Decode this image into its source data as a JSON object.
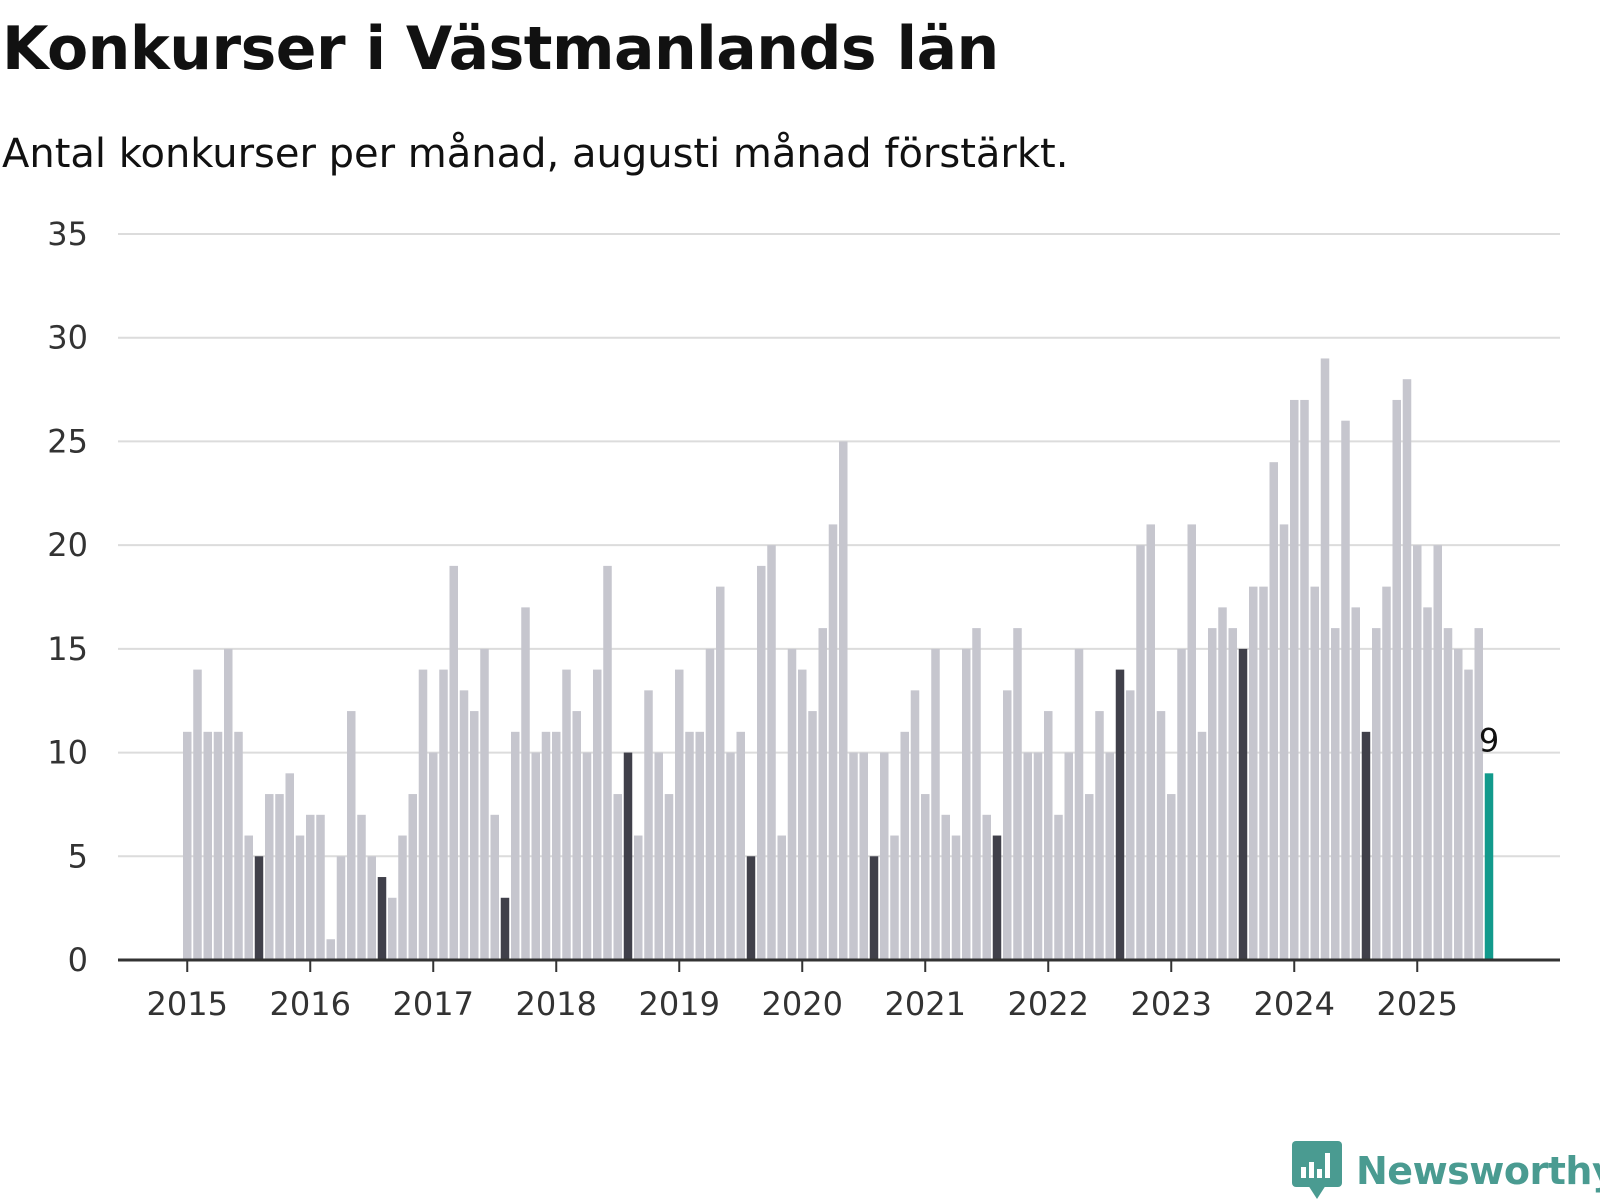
{
  "header": {
    "title": "Konkurser i Västmanlands län",
    "subtitle": "Antal konkurser per månad, augusti månad förstärkt."
  },
  "brand": {
    "name": "Newsworthy"
  },
  "colors": {
    "default_bar": "#c6c6ce",
    "highlight_bar": "#40404a",
    "latest_bar": "#129a8c",
    "gridline": "#dcdcdc",
    "axis": "#333333",
    "brand": "#4a9b91"
  },
  "chart_data": {
    "type": "bar",
    "title": "Konkurser i Västmanlands län",
    "subtitle": "Antal konkurser per månad, augusti månad förstärkt.",
    "xlabel": "",
    "ylabel": "",
    "ylim": [
      0,
      35
    ],
    "yticks": [
      0,
      5,
      10,
      15,
      20,
      25,
      30,
      35
    ],
    "xticks": [
      "2015",
      "2016",
      "2017",
      "2018",
      "2019",
      "2020",
      "2021",
      "2022",
      "2023",
      "2024",
      "2025"
    ],
    "grid": true,
    "legend": "none",
    "x_start": "2015-01",
    "x_end": "2025-08",
    "highlight_month": "augusti",
    "annotation": {
      "x": "2025-08",
      "text": "9"
    },
    "series": [
      {
        "values": [
          11,
          14,
          11,
          11,
          15,
          11,
          6,
          5,
          8,
          8,
          9,
          6,
          7,
          7,
          1,
          5,
          12,
          7,
          5,
          4,
          3,
          6,
          8,
          14,
          10,
          14,
          19,
          13,
          12,
          15,
          7,
          3,
          11,
          17,
          10,
          11,
          11,
          14,
          12,
          10,
          14,
          19,
          8,
          10,
          6,
          13,
          10,
          8,
          14,
          11,
          11,
          15,
          18,
          10,
          11,
          5,
          19,
          20,
          6,
          15,
          14,
          12,
          16,
          21,
          25,
          10,
          10,
          5,
          10,
          6,
          11,
          13,
          8,
          15,
          7,
          6,
          15,
          16,
          7,
          6,
          13,
          16,
          10,
          10,
          12,
          7,
          10,
          15,
          8,
          12,
          10,
          14,
          13,
          20,
          21,
          12,
          8,
          15,
          21,
          11,
          16,
          17,
          16,
          15,
          18,
          18,
          24,
          21,
          27,
          27,
          18,
          29,
          16,
          26,
          17,
          11,
          16,
          18,
          27,
          28,
          20,
          17,
          20,
          16,
          15,
          14,
          16,
          9
        ]
      }
    ]
  }
}
